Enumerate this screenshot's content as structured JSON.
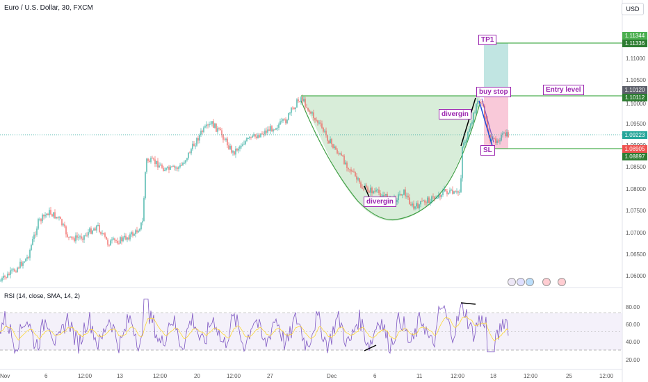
{
  "header": {
    "symbol_title": "Euro / U.S. Dollar, 30, FXCM",
    "currency_button": "USD"
  },
  "price_axis": {
    "ticks": [
      "1.11000",
      "1.10500",
      "1.10000",
      "1.09500",
      "1.09000",
      "1.08500",
      "1.08000",
      "1.07500",
      "1.07000",
      "1.06500",
      "1.06000"
    ],
    "badges": [
      {
        "value": "1.11344",
        "color": "#4caf50"
      },
      {
        "value": "1.11336",
        "color": "#2e7d32"
      },
      {
        "value": "1.10120",
        "color": "#5d606b"
      },
      {
        "value": "1.10112",
        "color": "#2e7d32"
      },
      {
        "value": "1.09223",
        "color": "#26a69a"
      },
      {
        "value": "1.08905",
        "color": "#ef5350"
      },
      {
        "value": "1.08897",
        "color": "#2e7d32"
      }
    ]
  },
  "rsi": {
    "label": "RSI (14, close, SMA, 14, 2)",
    "ticks": [
      "80.00",
      "60.00",
      "40.00",
      "20.00"
    ],
    "upper_band": 70,
    "lower_band": 30
  },
  "time_axis": [
    "Nov",
    "6",
    "12:00",
    "13",
    "12:00",
    "20",
    "12:00",
    "27",
    "Dec",
    "6",
    "11",
    "12:00",
    "18",
    "12:00",
    "25",
    "12:00"
  ],
  "annotations": {
    "tp1": "TP1",
    "buy_stop": "buy stop",
    "entry_level": "Entry level",
    "divergin_top": "divergin",
    "divergin_bottom": "divergin",
    "sl": "SL"
  },
  "colors": {
    "up_candle": "#26a69a",
    "down_candle": "#ef5350",
    "cup_fill": "#c8e6c9",
    "target_zone": "#b2dfdb",
    "stop_zone": "#f8bbd0",
    "rsi_line": "#7e57c2",
    "level_line": "#4caf50"
  },
  "icons": [
    "lightning-icon",
    "euro-flag-icon",
    "globe-icon",
    "us-flag-icon",
    "us-flag-icon-2"
  ]
}
